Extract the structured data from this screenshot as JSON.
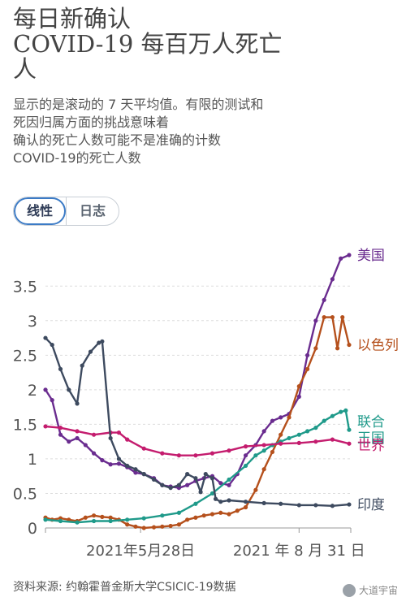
{
  "title_lines": [
    "每日新确认",
    "COVID-19 每百万人死亡",
    "人"
  ],
  "subtitle_lines": [
    "显示的是滚动的 7 天平均值。有限的测试和",
    "死因归属方面的挑战意味着",
    "确认的死亡人数可能不是准确的计数",
    "COVID-19的死亡人数"
  ],
  "scale_toggle": {
    "linear_label": "线性",
    "log_label": "日志",
    "selected": "linear"
  },
  "source": "资料来源:   约翰霍普金斯大学CSICIC-19数据",
  "watermark": "大道宇宙",
  "chart_data": {
    "type": "line",
    "x_start": "2021-04-01",
    "x_end": "2021-10-01",
    "x_ticks": [
      {
        "date": "2021-05-28",
        "label": "2021年5月28日"
      },
      {
        "date": "2021-08-31",
        "label": "2021 年 8 月 31 日"
      }
    ],
    "y_ticks": [
      "0",
      "0.5",
      "1",
      "1.5",
      "2",
      "2.5",
      "3",
      "3.5"
    ],
    "ylim": [
      0,
      3.95
    ],
    "grid": true,
    "series": [
      {
        "name": "美国",
        "color": "#6a2c8f",
        "points": [
          [
            "2021-04-01",
            2.0
          ],
          [
            "2021-04-05",
            1.85
          ],
          [
            "2021-04-10",
            1.35
          ],
          [
            "2021-04-15",
            1.25
          ],
          [
            "2021-04-20",
            1.3
          ],
          [
            "2021-04-25",
            1.2
          ],
          [
            "2021-04-30",
            1.08
          ],
          [
            "2021-05-05",
            0.98
          ],
          [
            "2021-05-10",
            0.92
          ],
          [
            "2021-05-15",
            0.93
          ],
          [
            "2021-05-20",
            0.88
          ],
          [
            "2021-05-25",
            0.8
          ],
          [
            "2021-05-30",
            0.78
          ],
          [
            "2021-06-05",
            0.72
          ],
          [
            "2021-06-10",
            0.62
          ],
          [
            "2021-06-15",
            0.6
          ],
          [
            "2021-06-20",
            0.58
          ],
          [
            "2021-06-25",
            0.62
          ],
          [
            "2021-06-30",
            0.68
          ],
          [
            "2021-07-05",
            0.72
          ],
          [
            "2021-07-10",
            0.75
          ],
          [
            "2021-07-15",
            0.65
          ],
          [
            "2021-07-20",
            0.62
          ],
          [
            "2021-07-25",
            0.78
          ],
          [
            "2021-07-30",
            1.05
          ],
          [
            "2021-08-05",
            1.2
          ],
          [
            "2021-08-10",
            1.4
          ],
          [
            "2021-08-15",
            1.55
          ],
          [
            "2021-08-20",
            1.6
          ],
          [
            "2021-08-25",
            1.65
          ],
          [
            "2021-08-31",
            1.9
          ],
          [
            "2021-09-05",
            2.5
          ],
          [
            "2021-09-10",
            3.0
          ],
          [
            "2021-09-15",
            3.3
          ],
          [
            "2021-09-20",
            3.6
          ],
          [
            "2021-09-25",
            3.9
          ],
          [
            "2021-09-30",
            3.95
          ]
        ]
      },
      {
        "name": "以色列",
        "color": "#b5501c",
        "points": [
          [
            "2021-04-01",
            0.15
          ],
          [
            "2021-04-05",
            0.12
          ],
          [
            "2021-04-10",
            0.14
          ],
          [
            "2021-04-15",
            0.12
          ],
          [
            "2021-04-20",
            0.1
          ],
          [
            "2021-04-25",
            0.15
          ],
          [
            "2021-04-30",
            0.18
          ],
          [
            "2021-05-05",
            0.16
          ],
          [
            "2021-05-10",
            0.15
          ],
          [
            "2021-05-15",
            0.12
          ],
          [
            "2021-05-20",
            0.05
          ],
          [
            "2021-05-25",
            0.02
          ],
          [
            "2021-05-30",
            0.0
          ],
          [
            "2021-06-05",
            0.01
          ],
          [
            "2021-06-10",
            0.02
          ],
          [
            "2021-06-15",
            0.03
          ],
          [
            "2021-06-20",
            0.05
          ],
          [
            "2021-06-25",
            0.12
          ],
          [
            "2021-06-30",
            0.15
          ],
          [
            "2021-07-05",
            0.18
          ],
          [
            "2021-07-10",
            0.2
          ],
          [
            "2021-07-15",
            0.22
          ],
          [
            "2021-07-20",
            0.2
          ],
          [
            "2021-07-25",
            0.25
          ],
          [
            "2021-07-30",
            0.3
          ],
          [
            "2021-08-05",
            0.55
          ],
          [
            "2021-08-10",
            0.85
          ],
          [
            "2021-08-15",
            1.1
          ],
          [
            "2021-08-20",
            1.35
          ],
          [
            "2021-08-25",
            1.6
          ],
          [
            "2021-08-31",
            2.05
          ],
          [
            "2021-09-05",
            2.3
          ],
          [
            "2021-09-10",
            2.6
          ],
          [
            "2021-09-15",
            3.05
          ],
          [
            "2021-09-20",
            3.05
          ],
          [
            "2021-09-23",
            2.6
          ],
          [
            "2021-09-26",
            3.05
          ],
          [
            "2021-09-30",
            2.65
          ]
        ]
      },
      {
        "name": "联合王国",
        "color": "#1f9a8a",
        "points": [
          [
            "2021-04-01",
            0.12
          ],
          [
            "2021-04-10",
            0.1
          ],
          [
            "2021-04-20",
            0.08
          ],
          [
            "2021-04-30",
            0.1
          ],
          [
            "2021-05-10",
            0.1
          ],
          [
            "2021-05-20",
            0.12
          ],
          [
            "2021-05-30",
            0.14
          ],
          [
            "2021-06-10",
            0.18
          ],
          [
            "2021-06-20",
            0.22
          ],
          [
            "2021-06-30",
            0.35
          ],
          [
            "2021-07-10",
            0.5
          ],
          [
            "2021-07-20",
            0.7
          ],
          [
            "2021-07-30",
            0.9
          ],
          [
            "2021-08-05",
            1.05
          ],
          [
            "2021-08-10",
            1.12
          ],
          [
            "2021-08-15",
            1.2
          ],
          [
            "2021-08-20",
            1.25
          ],
          [
            "2021-08-25",
            1.3
          ],
          [
            "2021-08-31",
            1.35
          ],
          [
            "2021-09-05",
            1.4
          ],
          [
            "2021-09-10",
            1.45
          ],
          [
            "2021-09-15",
            1.55
          ],
          [
            "2021-09-20",
            1.62
          ],
          [
            "2021-09-25",
            1.68
          ],
          [
            "2021-09-28",
            1.7
          ],
          [
            "2021-09-30",
            1.42
          ]
        ]
      },
      {
        "name": "世界",
        "color": "#c41c6e",
        "points": [
          [
            "2021-04-01",
            1.47
          ],
          [
            "2021-04-10",
            1.45
          ],
          [
            "2021-04-20",
            1.4
          ],
          [
            "2021-04-30",
            1.35
          ],
          [
            "2021-05-10",
            1.38
          ],
          [
            "2021-05-15",
            1.38
          ],
          [
            "2021-05-20",
            1.28
          ],
          [
            "2021-05-30",
            1.15
          ],
          [
            "2021-06-10",
            1.08
          ],
          [
            "2021-06-20",
            1.05
          ],
          [
            "2021-06-30",
            1.05
          ],
          [
            "2021-07-10",
            1.08
          ],
          [
            "2021-07-20",
            1.12
          ],
          [
            "2021-07-30",
            1.18
          ],
          [
            "2021-08-10",
            1.2
          ],
          [
            "2021-08-20",
            1.22
          ],
          [
            "2021-08-31",
            1.23
          ],
          [
            "2021-09-10",
            1.25
          ],
          [
            "2021-09-20",
            1.28
          ],
          [
            "2021-09-30",
            1.22
          ]
        ]
      },
      {
        "name": "印度",
        "color": "#3d4a5f",
        "points": [
          [
            "2021-04-01",
            2.75
          ],
          [
            "2021-04-05",
            2.65
          ],
          [
            "2021-04-10",
            2.3
          ],
          [
            "2021-04-15",
            2.0
          ],
          [
            "2021-04-20",
            1.8
          ],
          [
            "2021-04-23",
            2.35
          ],
          [
            "2021-04-28",
            2.55
          ],
          [
            "2021-05-03",
            2.68
          ],
          [
            "2021-05-05",
            2.7
          ],
          [
            "2021-05-10",
            1.3
          ],
          [
            "2021-05-15",
            1.0
          ],
          [
            "2021-05-20",
            0.9
          ],
          [
            "2021-05-25",
            0.85
          ],
          [
            "2021-05-30",
            0.78
          ],
          [
            "2021-06-05",
            0.7
          ],
          [
            "2021-06-10",
            0.62
          ],
          [
            "2021-06-15",
            0.58
          ],
          [
            "2021-06-20",
            0.62
          ],
          [
            "2021-06-25",
            0.78
          ],
          [
            "2021-06-30",
            0.72
          ],
          [
            "2021-07-03",
            0.52
          ],
          [
            "2021-07-06",
            0.78
          ],
          [
            "2021-07-10",
            0.72
          ],
          [
            "2021-07-12",
            0.42
          ],
          [
            "2021-07-15",
            0.38
          ],
          [
            "2021-07-20",
            0.4
          ],
          [
            "2021-07-30",
            0.38
          ],
          [
            "2021-08-10",
            0.36
          ],
          [
            "2021-08-20",
            0.35
          ],
          [
            "2021-08-31",
            0.33
          ],
          [
            "2021-09-10",
            0.33
          ],
          [
            "2021-09-20",
            0.32
          ],
          [
            "2021-09-30",
            0.34
          ]
        ]
      }
    ]
  }
}
